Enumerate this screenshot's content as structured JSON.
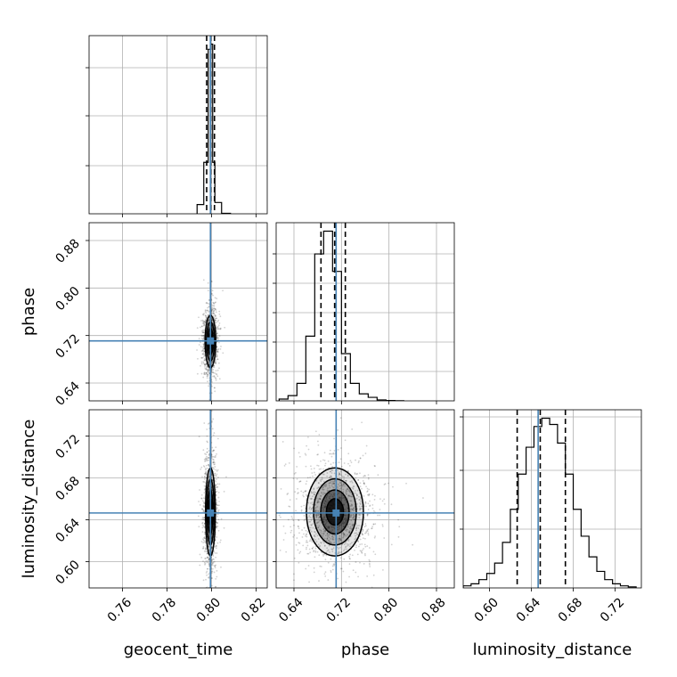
{
  "chart_data": {
    "type": "corner",
    "parameters": [
      "geocent_time",
      "phase",
      "luminosity_distance"
    ],
    "axis_labels": [
      "geocent_time",
      "phase",
      "luminosity_distance"
    ],
    "ranges": {
      "geocent_time": [
        0.745,
        0.825
      ],
      "phase": [
        0.61,
        0.91
      ],
      "luminosity_distance": [
        0.575,
        0.745
      ]
    },
    "ticks": {
      "geocent_time": [
        "0.76",
        "0.78",
        "0.80",
        "0.82"
      ],
      "phase": [
        "0.64",
        "0.72",
        "0.80",
        "0.88"
      ],
      "luminosity_distance": [
        "0.60",
        "0.64",
        "0.68",
        "0.72"
      ]
    },
    "truths": {
      "geocent_time": 0.7995,
      "phase": 0.711,
      "luminosity_distance": 0.6465
    },
    "quantiles": {
      "geocent_time": [
        0.7978,
        0.7996,
        0.8013
      ],
      "phase": [
        0.6855,
        0.7085,
        0.7265
      ],
      "luminosity_distance": [
        0.6265,
        0.6485,
        0.6725
      ]
    },
    "histograms": {
      "geocent_time": {
        "edges": [
          0.7935,
          0.7965,
          0.7985,
          0.7995,
          0.8005,
          0.8015,
          0.8045,
          0.8085
        ],
        "counts": [
          0.18,
          1.0,
          3.2,
          3.3,
          1.0,
          0.22,
          0.01
        ]
      },
      "phase": {
        "edges": [
          0.615,
          0.63,
          0.645,
          0.66,
          0.675,
          0.69,
          0.705,
          0.72,
          0.735,
          0.75,
          0.765,
          0.78,
          0.795,
          0.81,
          0.825
        ],
        "counts": [
          0.01,
          0.03,
          0.1,
          0.37,
          0.84,
          0.97,
          0.74,
          0.27,
          0.1,
          0.04,
          0.02,
          0.005,
          0.002,
          0.001
        ]
      },
      "luminosity_distance": {
        "edges": [
          0.575,
          0.5825,
          0.59,
          0.5975,
          0.605,
          0.6125,
          0.62,
          0.6275,
          0.635,
          0.6425,
          0.65,
          0.6575,
          0.665,
          0.6725,
          0.68,
          0.6875,
          0.695,
          0.7025,
          0.71,
          0.7175,
          0.725,
          0.7325,
          0.74
        ],
        "counts": [
          0.01,
          0.02,
          0.04,
          0.07,
          0.12,
          0.22,
          0.38,
          0.55,
          0.68,
          0.78,
          0.82,
          0.79,
          0.7,
          0.55,
          0.38,
          0.25,
          0.15,
          0.08,
          0.04,
          0.02,
          0.01,
          0.005
        ]
      }
    },
    "pairs": [
      {
        "x": "geocent_time",
        "y": "phase",
        "center": [
          0.7995,
          0.71
        ],
        "sigma": [
          0.0012,
          0.022
        ],
        "contour_levels": [
          0.6,
          1.0,
          1.5,
          2.0
        ]
      },
      {
        "x": "geocent_time",
        "y": "luminosity_distance",
        "center": [
          0.7995,
          0.6475
        ],
        "sigma": [
          0.0011,
          0.021
        ],
        "contour_levels": [
          0.6,
          1.0,
          1.5,
          2.0
        ]
      },
      {
        "x": "phase",
        "y": "luminosity_distance",
        "center": [
          0.709,
          0.6475
        ],
        "sigma": [
          0.024,
          0.021
        ],
        "contour_levels": [
          0.6,
          1.0,
          1.5,
          2.0
        ]
      }
    ],
    "colors": {
      "truth": "#4682b4",
      "line": "#000000",
      "grid": "#b0b0b0",
      "contour_fill": "#000000"
    },
    "grid": true
  }
}
